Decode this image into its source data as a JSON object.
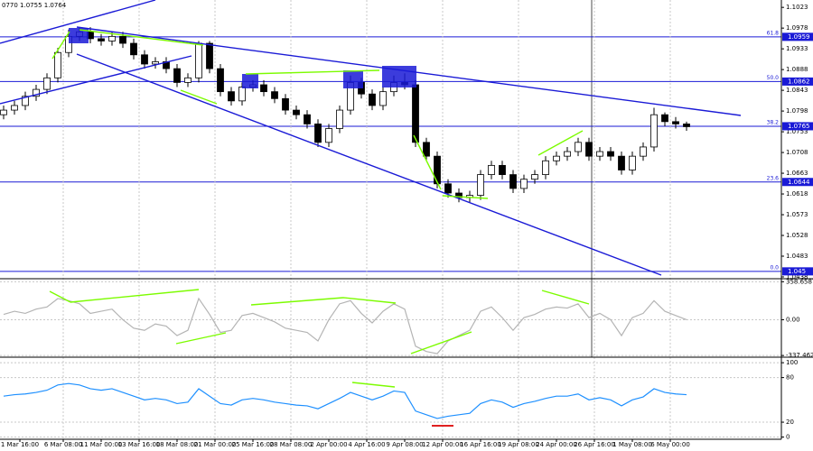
{
  "chart_data": [
    {
      "type": "candlestick",
      "title": "0770 1.0755 1.0764",
      "ylim": [
        1.0436,
        1.1039
      ],
      "yticks": [
        1.1023,
        1.0978,
        1.0933,
        1.0888,
        1.0843,
        1.0798,
        1.0753,
        1.0708,
        1.0663,
        1.0618,
        1.0573,
        1.0528,
        1.0483,
        1.0438
      ],
      "levels": [
        {
          "value": 1.0959,
          "label": "61.8"
        },
        {
          "value": 1.0862,
          "label": "50.0"
        },
        {
          "value": 1.0765,
          "label": "38.2"
        },
        {
          "value": 1.0644,
          "label": "23.6"
        },
        {
          "value": 1.045,
          "label": "0.0"
        }
      ],
      "xticks": [
        {
          "value": 1.5,
          "label": "1 Mar 16:00"
        },
        {
          "value": 5.5,
          "label": "6 Mar 08:00"
        },
        {
          "value": 9,
          "label": "11 Mar 00:00"
        },
        {
          "value": 12.5,
          "label": "13 Mar 16:00"
        },
        {
          "value": 16,
          "label": "18 Mar 08:00"
        },
        {
          "value": 19.5,
          "label": "21 Mar 00:00"
        },
        {
          "value": 23,
          "label": "25 Mar 16:00"
        },
        {
          "value": 26.5,
          "label": "28 Mar 08:00"
        },
        {
          "value": 30,
          "label": "2 Apr 00:00"
        },
        {
          "value": 33.5,
          "label": "4 Apr 16:00"
        },
        {
          "value": 37,
          "label": "9 Apr 08:00"
        },
        {
          "value": 40.5,
          "label": "12 Apr 00:00"
        },
        {
          "value": 44,
          "label": "16 Apr 16:00"
        },
        {
          "value": 47.5,
          "label": "19 Apr 08:00"
        },
        {
          "value": 51,
          "label": "24 Apr 00:00"
        },
        {
          "value": 54.5,
          "label": "26 Apr 16:00"
        },
        {
          "value": 58,
          "label": "1 May 08:00"
        },
        {
          "value": 61.5,
          "label": "6 May 00:00"
        }
      ],
      "level_color": "#1a1ad6",
      "ohlc": [
        [
          1.079,
          1.081,
          1.078,
          1.08
        ],
        [
          1.08,
          1.082,
          1.079,
          1.081
        ],
        [
          1.081,
          1.084,
          1.08,
          1.083
        ],
        [
          1.083,
          1.0855,
          1.082,
          1.0845
        ],
        [
          1.0845,
          1.088,
          1.0835,
          1.087
        ],
        [
          1.087,
          1.0935,
          1.086,
          1.0925
        ],
        [
          1.0925,
          1.0975,
          1.0915,
          1.096
        ],
        [
          1.096,
          1.098,
          1.095,
          1.097
        ],
        [
          1.097,
          1.098,
          1.0945,
          1.0955
        ],
        [
          1.0955,
          1.0965,
          1.094,
          1.095
        ],
        [
          1.095,
          1.097,
          1.094,
          1.096
        ],
        [
          1.096,
          1.097,
          1.0935,
          1.0945
        ],
        [
          1.0945,
          1.0955,
          1.091,
          1.092
        ],
        [
          1.092,
          1.093,
          1.089,
          1.09
        ],
        [
          1.09,
          1.0915,
          1.089,
          1.0905
        ],
        [
          1.0905,
          1.0915,
          1.088,
          1.089
        ],
        [
          1.089,
          1.09,
          1.085,
          1.086
        ],
        [
          1.086,
          1.088,
          1.085,
          1.087
        ],
        [
          1.087,
          1.095,
          1.086,
          1.0945
        ],
        [
          1.0945,
          1.095,
          1.088,
          1.089
        ],
        [
          1.089,
          1.09,
          1.083,
          1.084
        ],
        [
          1.084,
          1.085,
          1.081,
          1.082
        ],
        [
          1.082,
          1.086,
          1.081,
          1.085
        ],
        [
          1.085,
          1.0865,
          1.084,
          1.0855
        ],
        [
          1.0855,
          1.0865,
          1.083,
          1.084
        ],
        [
          1.084,
          1.085,
          1.0815,
          1.0825
        ],
        [
          1.0825,
          1.0835,
          1.079,
          1.08
        ],
        [
          1.08,
          1.081,
          1.078,
          1.079
        ],
        [
          1.079,
          1.08,
          1.076,
          1.077
        ],
        [
          1.077,
          1.078,
          1.072,
          1.073
        ],
        [
          1.073,
          1.077,
          1.072,
          1.076
        ],
        [
          1.076,
          1.081,
          1.075,
          1.08
        ],
        [
          1.08,
          1.0875,
          1.079,
          1.086
        ],
        [
          1.086,
          1.087,
          1.0825,
          1.0835
        ],
        [
          1.0835,
          1.0845,
          1.08,
          1.081
        ],
        [
          1.081,
          1.085,
          1.08,
          1.084
        ],
        [
          1.084,
          1.0875,
          1.083,
          1.086
        ],
        [
          1.086,
          1.088,
          1.0845,
          1.0855
        ],
        [
          1.0855,
          1.0865,
          1.072,
          1.073
        ],
        [
          1.073,
          1.074,
          1.069,
          1.07
        ],
        [
          1.07,
          1.071,
          1.063,
          1.064
        ],
        [
          1.064,
          1.065,
          1.061,
          1.062
        ],
        [
          1.062,
          1.063,
          1.06,
          1.061
        ],
        [
          1.061,
          1.0625,
          1.06,
          1.0615
        ],
        [
          1.0615,
          1.067,
          1.0605,
          1.066
        ],
        [
          1.066,
          1.069,
          1.065,
          1.068
        ],
        [
          1.068,
          1.069,
          1.065,
          1.066
        ],
        [
          1.066,
          1.067,
          1.062,
          1.063
        ],
        [
          1.063,
          1.066,
          1.062,
          1.065
        ],
        [
          1.065,
          1.067,
          1.064,
          1.066
        ],
        [
          1.066,
          1.07,
          1.065,
          1.069
        ],
        [
          1.069,
          1.071,
          1.068,
          1.07
        ],
        [
          1.07,
          1.072,
          1.069,
          1.071
        ],
        [
          1.071,
          1.074,
          1.07,
          1.073
        ],
        [
          1.073,
          1.074,
          1.069,
          1.07
        ],
        [
          1.07,
          1.072,
          1.069,
          1.071
        ],
        [
          1.071,
          1.072,
          1.069,
          1.07
        ],
        [
          1.07,
          1.071,
          1.066,
          1.067
        ],
        [
          1.067,
          1.071,
          1.066,
          1.07
        ],
        [
          1.07,
          1.073,
          1.069,
          1.072
        ],
        [
          1.072,
          1.0805,
          1.071,
          1.079
        ],
        [
          1.079,
          1.0795,
          1.0765,
          1.0775
        ],
        [
          1.0775,
          1.0785,
          1.076,
          1.077
        ],
        [
          1.077,
          1.0775,
          1.0755,
          1.0764
        ]
      ]
    },
    {
      "type": "line",
      "color": "#b4b4b4",
      "ylim": [
        -345,
        370
      ],
      "yticks": [
        358.6587,
        {
          "value": 0,
          "label": "0.00"
        },
        -337.462
      ],
      "values": [
        50,
        80,
        60,
        100,
        120,
        200,
        180,
        150,
        60,
        80,
        100,
        0,
        -80,
        -100,
        -40,
        -60,
        -150,
        -100,
        200,
        50,
        -120,
        -100,
        40,
        60,
        20,
        -20,
        -80,
        -100,
        -120,
        -200,
        0,
        150,
        180,
        60,
        -30,
        80,
        150,
        100,
        -250,
        -300,
        -320,
        -200,
        -150,
        -100,
        80,
        120,
        20,
        -100,
        20,
        50,
        100,
        120,
        110,
        150,
        20,
        60,
        0,
        -150,
        20,
        60,
        180,
        80,
        40,
        0
      ]
    },
    {
      "type": "line",
      "color": "#1e90ff",
      "ylim": [
        -3,
        105
      ],
      "yticks": [
        100,
        80,
        20,
        0
      ],
      "values": [
        55,
        57,
        58,
        60,
        63,
        70,
        72,
        70,
        65,
        63,
        65,
        60,
        55,
        50,
        52,
        50,
        45,
        47,
        65,
        55,
        45,
        43,
        50,
        52,
        50,
        47,
        45,
        43,
        42,
        38,
        45,
        52,
        60,
        55,
        50,
        55,
        62,
        60,
        35,
        30,
        25,
        28,
        30,
        32,
        45,
        50,
        47,
        40,
        45,
        48,
        52,
        55,
        55,
        58,
        50,
        53,
        50,
        42,
        50,
        54,
        65,
        60,
        58,
        57
      ]
    }
  ]
}
